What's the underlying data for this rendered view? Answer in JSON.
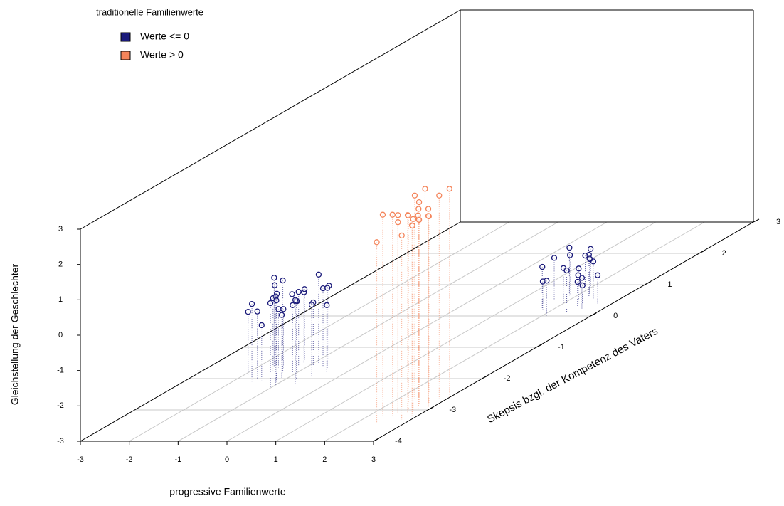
{
  "chart_data": {
    "type": "scatter3d",
    "x_label": "progressive Familienwerte",
    "y_label": "Skepsis bzgl. der Kompetenz des Vaters",
    "z_label": "Gleichstellung der Geschlechter",
    "legend_title": "traditionelle Familienwerte",
    "legend_position": "top-left",
    "grid": true,
    "xlim": [
      -3,
      3
    ],
    "xticks": [
      -3,
      -2,
      -1,
      0,
      1,
      2,
      3
    ],
    "ylim": [
      -4,
      3
    ],
    "yticks": [
      -4,
      -3,
      -2,
      -1,
      0,
      1,
      2,
      3
    ],
    "zlim": [
      -3,
      3
    ],
    "zticks": [
      -3,
      -2,
      -1,
      0,
      1,
      2,
      3
    ],
    "series": [
      {
        "name": "Werte <= 0",
        "color": "#1a1a7a",
        "x": [
          -1.5,
          -1.2,
          -0.9,
          -1.8,
          -1.0,
          -0.6,
          -1.4,
          -1.1,
          -0.8,
          -1.6,
          -1.3,
          -0.7,
          -1.9,
          -1.0,
          -1.2,
          -0.5,
          -1.4,
          -0.9,
          -1.7,
          -1.1,
          -0.8,
          -1.3,
          -0.6,
          -1.5,
          -1.0,
          -1.2,
          -0.4,
          -1.6,
          -0.9,
          -1.1,
          2.0,
          2.3,
          1.8,
          2.5,
          2.1,
          1.9,
          2.4,
          2.2,
          1.7,
          2.6,
          2.0,
          2.3,
          1.9,
          2.1,
          2.5,
          1.8,
          2.2,
          2.4,
          2.0,
          2.7
        ],
        "y": [
          -1.8,
          -2.0,
          -1.6,
          -1.5,
          -2.2,
          -1.9,
          -1.7,
          -2.1,
          -1.4,
          -2.0,
          -1.8,
          -1.6,
          -1.9,
          -2.3,
          -1.5,
          -1.7,
          -2.1,
          -1.9,
          -1.6,
          -1.8,
          -2.0,
          -1.4,
          -2.2,
          -1.7,
          -1.9,
          -1.6,
          -1.8,
          -2.1,
          -1.5,
          -2.0,
          0.4,
          0.6,
          0.2,
          0.5,
          0.8,
          0.1,
          0.3,
          0.7,
          0.5,
          0.2,
          0.9,
          0.4,
          0.6,
          0.0,
          0.3,
          0.7,
          0.5,
          0.1,
          0.8,
          0.4
        ],
        "z": [
          -0.9,
          -0.6,
          -1.2,
          -0.8,
          -0.5,
          -1.0,
          -1.3,
          -0.7,
          -0.9,
          -1.1,
          -0.4,
          -0.8,
          -1.2,
          -0.6,
          -1.0,
          -0.7,
          -1.4,
          -0.9,
          -0.5,
          -1.1,
          -0.8,
          -1.0,
          -0.6,
          -1.3,
          -0.7,
          -0.9,
          -1.1,
          -0.8,
          -0.5,
          -1.2,
          -2.0,
          -1.8,
          -2.2,
          -1.9,
          -2.1,
          -1.7,
          -2.3,
          -2.0,
          -1.8,
          -2.1,
          -1.9,
          -2.2,
          -1.6,
          -2.0,
          -2.4,
          -1.9,
          -2.1,
          -1.8,
          -2.0,
          -2.2
        ]
      },
      {
        "name": "Werte > 0",
        "color": "#f4845a",
        "x": [
          2.6,
          2.8,
          2.5,
          2.9,
          2.7,
          2.4,
          2.8,
          2.6,
          3.0,
          2.7,
          2.5,
          2.9,
          2.6,
          2.8,
          2.4,
          2.7,
          2.9,
          2.5,
          2.8,
          2.6,
          2.3,
          2.7,
          2.9,
          2.5,
          2.8
        ],
        "y": [
          -3.0,
          -2.8,
          -3.2,
          -2.9,
          -3.1,
          -2.7,
          -3.3,
          -3.0,
          -2.6,
          -2.9,
          -3.1,
          -3.2,
          -2.8,
          -3.0,
          -3.4,
          -2.9,
          -2.7,
          -3.1,
          -3.0,
          -2.8,
          -3.2,
          -3.0,
          -2.9,
          -2.6,
          -3.1
        ],
        "z": [
          2.5,
          2.3,
          2.7,
          2.4,
          2.6,
          2.8,
          2.2,
          2.5,
          2.9,
          2.3,
          2.6,
          2.4,
          2.7,
          2.5,
          2.1,
          2.6,
          2.8,
          2.4,
          2.5,
          2.2,
          2.7,
          2.4,
          2.6,
          2.9,
          2.3
        ]
      }
    ]
  }
}
